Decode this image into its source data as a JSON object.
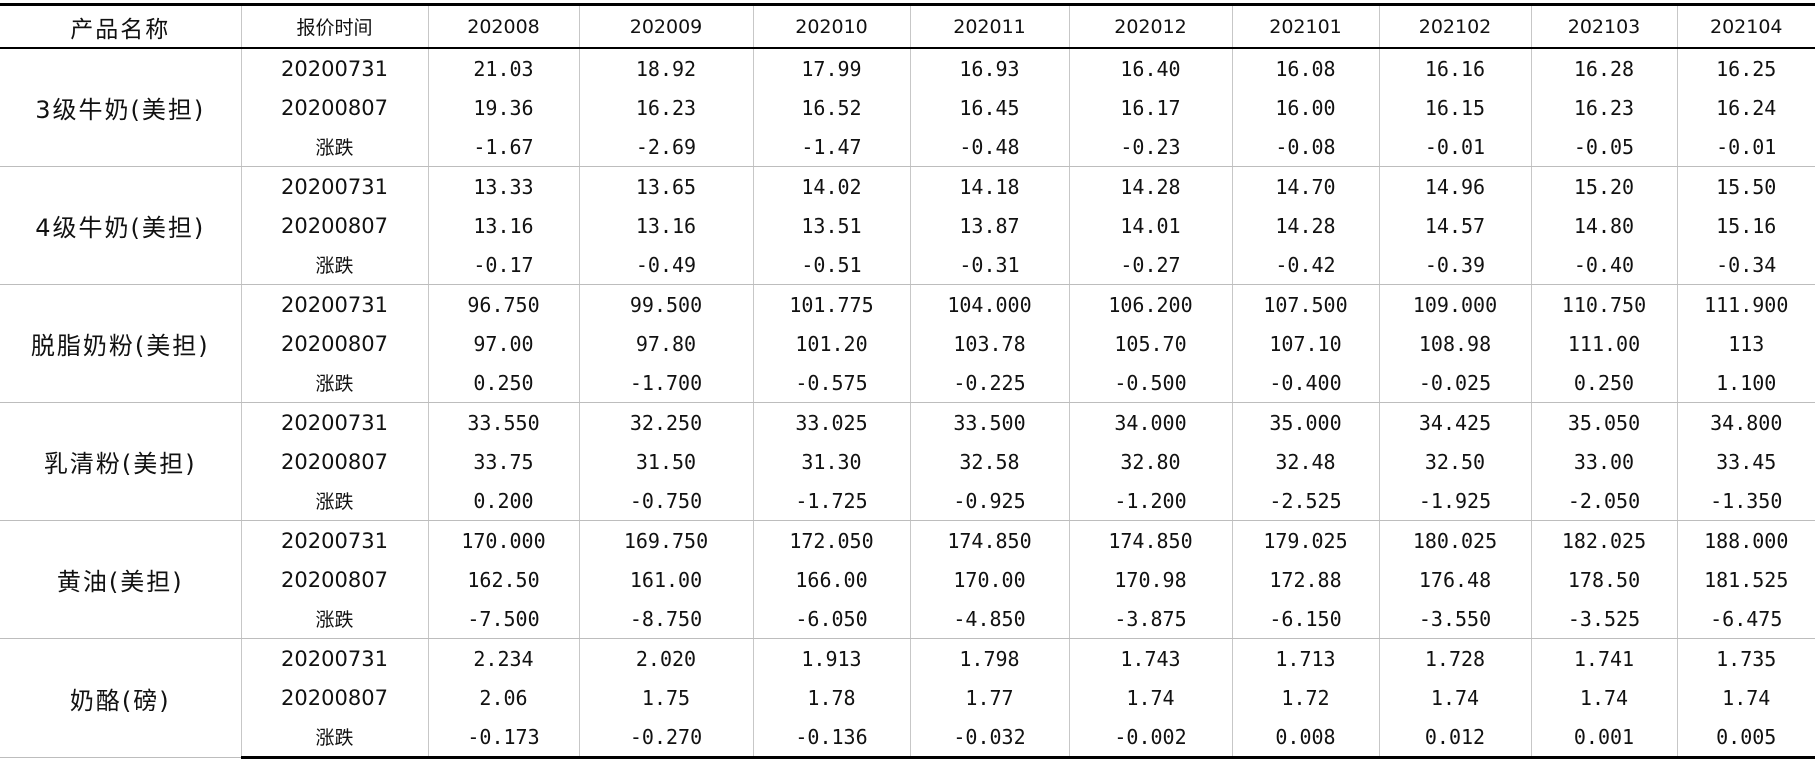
{
  "table": {
    "headers": [
      "产品名称",
      "报价时间",
      "202008",
      "202009",
      "202010",
      "202011",
      "202012",
      "202101",
      "202102",
      "202103",
      "202104"
    ],
    "products": [
      {
        "name": "3级牛奶(美担)",
        "rows": [
          {
            "label": "20200731",
            "values": [
              "21.03",
              "18.92",
              "17.99",
              "16.93",
              "16.40",
              "16.08",
              "16.16",
              "16.28",
              "16.25"
            ]
          },
          {
            "label": "20200807",
            "values": [
              "19.36",
              "16.23",
              "16.52",
              "16.45",
              "16.17",
              "16.00",
              "16.15",
              "16.23",
              "16.24"
            ]
          },
          {
            "label": "涨跌",
            "values": [
              "-1.67",
              "-2.69",
              "-1.47",
              "-0.48",
              "-0.23",
              "-0.08",
              "-0.01",
              "-0.05",
              "-0.01"
            ]
          }
        ]
      },
      {
        "name": "4级牛奶(美担)",
        "rows": [
          {
            "label": "20200731",
            "values": [
              "13.33",
              "13.65",
              "14.02",
              "14.18",
              "14.28",
              "14.70",
              "14.96",
              "15.20",
              "15.50"
            ]
          },
          {
            "label": "20200807",
            "values": [
              "13.16",
              "13.16",
              "13.51",
              "13.87",
              "14.01",
              "14.28",
              "14.57",
              "14.80",
              "15.16"
            ]
          },
          {
            "label": "涨跌",
            "values": [
              "-0.17",
              "-0.49",
              "-0.51",
              "-0.31",
              "-0.27",
              "-0.42",
              "-0.39",
              "-0.40",
              "-0.34"
            ]
          }
        ]
      },
      {
        "name": "脱脂奶粉(美担)",
        "rows": [
          {
            "label": "20200731",
            "values": [
              "96.750",
              "99.500",
              "101.775",
              "104.000",
              "106.200",
              "107.500",
              "109.000",
              "110.750",
              "111.900"
            ]
          },
          {
            "label": "20200807",
            "values": [
              "97.00",
              "97.80",
              "101.20",
              "103.78",
              "105.70",
              "107.10",
              "108.98",
              "111.00",
              "113"
            ]
          },
          {
            "label": "涨跌",
            "values": [
              "0.250",
              "-1.700",
              "-0.575",
              "-0.225",
              "-0.500",
              "-0.400",
              "-0.025",
              "0.250",
              "1.100"
            ]
          }
        ]
      },
      {
        "name": "乳清粉(美担)",
        "rows": [
          {
            "label": "20200731",
            "values": [
              "33.550",
              "32.250",
              "33.025",
              "33.500",
              "34.000",
              "35.000",
              "34.425",
              "35.050",
              "34.800"
            ]
          },
          {
            "label": "20200807",
            "values": [
              "33.75",
              "31.50",
              "31.30",
              "32.58",
              "32.80",
              "32.48",
              "32.50",
              "33.00",
              "33.45"
            ]
          },
          {
            "label": "涨跌",
            "values": [
              "0.200",
              "-0.750",
              "-1.725",
              "-0.925",
              "-1.200",
              "-2.525",
              "-1.925",
              "-2.050",
              "-1.350"
            ]
          }
        ]
      },
      {
        "name": "黄油(美担)",
        "rows": [
          {
            "label": "20200731",
            "values": [
              "170.000",
              "169.750",
              "172.050",
              "174.850",
              "174.850",
              "179.025",
              "180.025",
              "182.025",
              "188.000"
            ]
          },
          {
            "label": "20200807",
            "values": [
              "162.50",
              "161.00",
              "166.00",
              "170.00",
              "170.98",
              "172.88",
              "176.48",
              "178.50",
              "181.525"
            ]
          },
          {
            "label": "涨跌",
            "values": [
              "-7.500",
              "-8.750",
              "-6.050",
              "-4.850",
              "-3.875",
              "-6.150",
              "-3.550",
              "-3.525",
              "-6.475"
            ]
          }
        ]
      },
      {
        "name": "奶酪(磅)",
        "rows": [
          {
            "label": "20200731",
            "values": [
              "2.234",
              "2.020",
              "1.913",
              "1.798",
              "1.743",
              "1.713",
              "1.728",
              "1.741",
              "1.735"
            ]
          },
          {
            "label": "20200807",
            "values": [
              "2.06",
              "1.75",
              "1.78",
              "1.77",
              "1.74",
              "1.72",
              "1.74",
              "1.74",
              "1.74"
            ]
          },
          {
            "label": "涨跌",
            "values": [
              "-0.173",
              "-0.270",
              "-0.136",
              "-0.032",
              "-0.002",
              "0.008",
              "0.012",
              "0.001",
              "0.005"
            ]
          }
        ]
      }
    ]
  }
}
